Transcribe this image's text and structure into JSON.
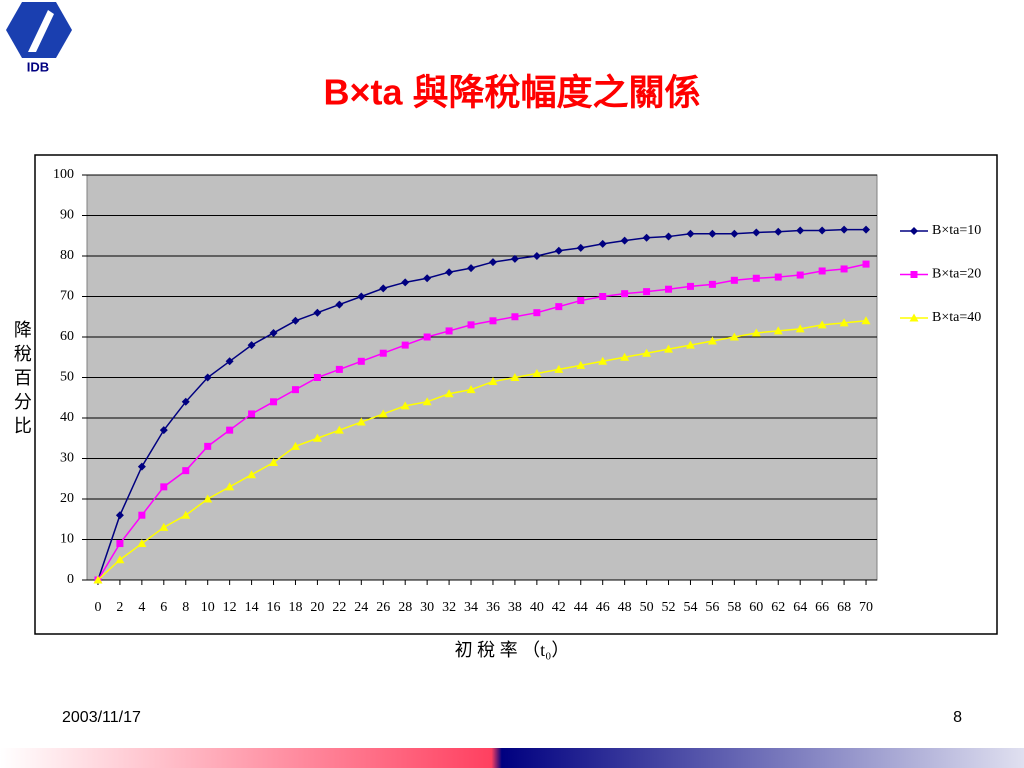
{
  "slide": {
    "logo": "IDB",
    "date": "2003/11/17",
    "page": 8
  },
  "chart_data": {
    "type": "line",
    "title": "B×ta 與降稅幅度之關係",
    "xlabel": "初 稅 率 （t₀）",
    "ylabel": "降稅百分比",
    "x": [
      0,
      2,
      4,
      6,
      8,
      10,
      12,
      14,
      16,
      18,
      20,
      22,
      24,
      26,
      28,
      30,
      32,
      34,
      36,
      38,
      40,
      42,
      44,
      46,
      48,
      50,
      52,
      54,
      56,
      58,
      60,
      62,
      64,
      66,
      68,
      70
    ],
    "xlim": [
      -1,
      71
    ],
    "xticks": [
      0,
      2,
      4,
      6,
      8,
      10,
      12,
      14,
      16,
      18,
      20,
      22,
      24,
      26,
      28,
      30,
      32,
      34,
      36,
      38,
      40,
      42,
      44,
      46,
      48,
      50,
      52,
      54,
      56,
      58,
      60,
      62,
      64,
      66,
      68,
      70
    ],
    "ylim": [
      0,
      100
    ],
    "yticks": [
      0,
      10,
      20,
      30,
      40,
      50,
      60,
      70,
      80,
      90,
      100
    ],
    "grid": true,
    "legend": "right",
    "series": [
      {
        "name": "B×ta=10",
        "color": "#000080",
        "marker": "diamond",
        "values": [
          0,
          16,
          28,
          37,
          44,
          50,
          54,
          58,
          61,
          64,
          66,
          68,
          70,
          72,
          73.5,
          74.5,
          76,
          77,
          78.5,
          79.3,
          80,
          81.3,
          82,
          83,
          83.8,
          84.5,
          84.8,
          85.5,
          85.5,
          85.5,
          85.8,
          86,
          86.3,
          86.3,
          86.5,
          86.5
        ]
      },
      {
        "name": "B×ta=20",
        "color": "#ff00ff",
        "marker": "square",
        "values": [
          0,
          9,
          16,
          23,
          27,
          33,
          37,
          41,
          44,
          47,
          50,
          52,
          54,
          56,
          58,
          60,
          61.5,
          63,
          64,
          65,
          66,
          67.5,
          69,
          70,
          70.7,
          71.2,
          71.8,
          72.5,
          73,
          74,
          74.5,
          74.8,
          75.3,
          76.3,
          76.8,
          78
        ]
      },
      {
        "name": "B×ta=40",
        "color": "#ffff00",
        "marker": "triangle",
        "values": [
          0,
          5,
          9,
          13,
          16,
          20,
          23,
          26,
          29,
          33,
          35,
          37,
          39,
          41,
          43,
          44,
          46,
          47,
          49,
          50,
          51,
          52,
          53,
          54,
          55,
          56,
          57,
          58,
          59,
          60,
          61,
          61.5,
          62,
          63,
          63.5,
          64
        ]
      }
    ]
  }
}
